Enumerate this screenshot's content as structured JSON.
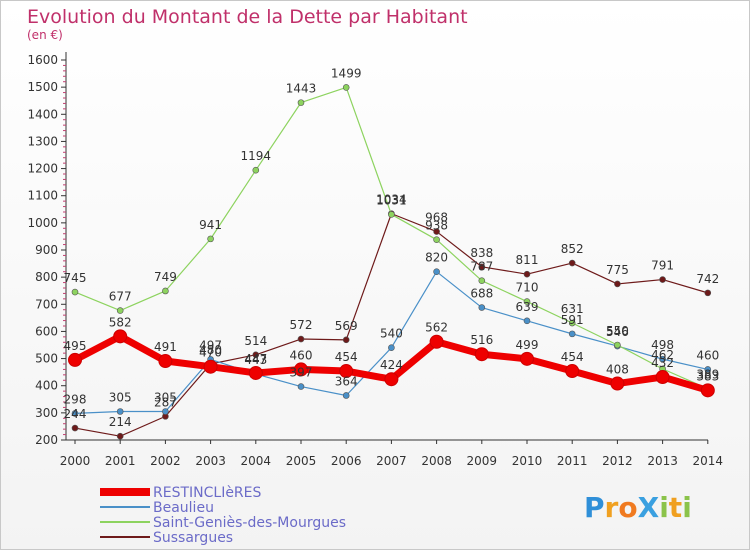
{
  "chart_data": {
    "type": "line",
    "title": "Evolution du Montant de la Dette par Habitant",
    "unit_label": "(en €)",
    "ylim": [
      200,
      1600
    ],
    "yticks": [
      200,
      300,
      400,
      500,
      600,
      700,
      800,
      900,
      1000,
      1100,
      1200,
      1300,
      1400,
      1500,
      1600
    ],
    "categories": [
      "2000",
      "2001",
      "2002",
      "2003",
      "2004",
      "2005",
      "2006",
      "2007",
      "2008",
      "2009",
      "2010",
      "2011",
      "2012",
      "2013",
      "2014"
    ],
    "grid": false,
    "legend_position": "bottom-left",
    "series": [
      {
        "name": "Sussargues",
        "color": "#6e1a1a",
        "width": 1.2,
        "values": [
          244,
          214,
          287,
          480,
          514,
          572,
          569,
          1034,
          968,
          838,
          811,
          852,
          775,
          791,
          742
        ]
      },
      {
        "name": "Beaulieu",
        "color": "#4a90c8",
        "width": 1.2,
        "values": [
          298,
          305,
          305,
          497,
          443,
          397,
          364,
          540,
          820,
          688,
          639,
          591,
          546,
          498,
          460
        ]
      },
      {
        "name": "Saint-Geniès-des-Mourgues",
        "color": "#8dd35f",
        "width": 1.2,
        "values": [
          745,
          677,
          749,
          941,
          1194,
          1443,
          1499,
          1031,
          938,
          787,
          710,
          631,
          550,
          462,
          389
        ]
      },
      {
        "name": "RESTINCLIèRES",
        "color": "#ee0000",
        "width": 7,
        "values": [
          495,
          582,
          491,
          470,
          447,
          460,
          454,
          424,
          562,
          516,
          499,
          454,
          408,
          432,
          383
        ]
      }
    ]
  },
  "legend": [
    {
      "label": "RESTINCLIèRES",
      "color": "#ee0000",
      "text_color": "#6b6bc8",
      "thick": true
    },
    {
      "label": "Beaulieu",
      "color": "#4a90c8",
      "text_color": "#6b6bc8",
      "thick": false
    },
    {
      "label": "Saint-Geniès-des-Mourgues",
      "color": "#8dd35f",
      "text_color": "#6b6bc8",
      "thick": false
    },
    {
      "label": "Sussargues",
      "color": "#6e1a1a",
      "text_color": "#6b6bc8",
      "thick": false
    }
  ],
  "logo": {
    "text": "ProXiti",
    "letters": [
      {
        "ch": "P",
        "color": "#2f8fd8"
      },
      {
        "ch": "r",
        "color": "#f0a020"
      },
      {
        "ch": "o",
        "color": "#f07a20"
      },
      {
        "ch": "X",
        "color": "#3aa0e0"
      },
      {
        "ch": "i",
        "color": "#8bc34a"
      },
      {
        "ch": "t",
        "color": "#f0a020"
      },
      {
        "ch": "i",
        "color": "#8bc34a"
      }
    ]
  }
}
